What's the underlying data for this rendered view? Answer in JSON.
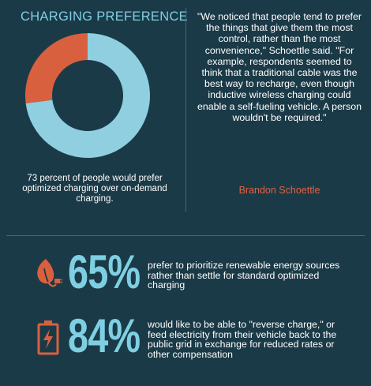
{
  "header": {
    "title": "CHARGING PREFERENCE"
  },
  "chart_data": {
    "type": "pie",
    "title": "CHARGING PREFERENCE",
    "categories": [
      "optimized charging",
      "on-demand charging"
    ],
    "values": [
      73,
      27
    ],
    "colors": [
      "#8fcfe0",
      "#d9603f"
    ],
    "caption": "73 percent of people would prefer optimized charging over on-demand charging."
  },
  "quote": {
    "text": "\"We noticed that people tend to prefer the things that give them the most control, rather than the most convenience,\" Schoettle said. \"For example, respondents seemed to think that a traditional cable was the best way to recharge, even though inductive wireless charging could enable a self-fueling vehicle. A person wouldn't be required.\"",
    "author": "Brandon Schoettle"
  },
  "stats": [
    {
      "percent": "65%",
      "text": "prefer to prioritize renewable energy sources rather than settle for standard optimized charging",
      "icon": "leaf-plug-icon"
    },
    {
      "percent": "84%",
      "text": "would like to be able to \"reverse charge,\" or feed electricity from their vehicle back to the public grid in exchange for reduced rates or other compensation",
      "icon": "battery-bolt-icon"
    }
  ],
  "colors": {
    "background": "#1b3a47",
    "accent_blue": "#7fcfe3",
    "accent_orange": "#d9603f",
    "divider": "#3f6b7a"
  }
}
